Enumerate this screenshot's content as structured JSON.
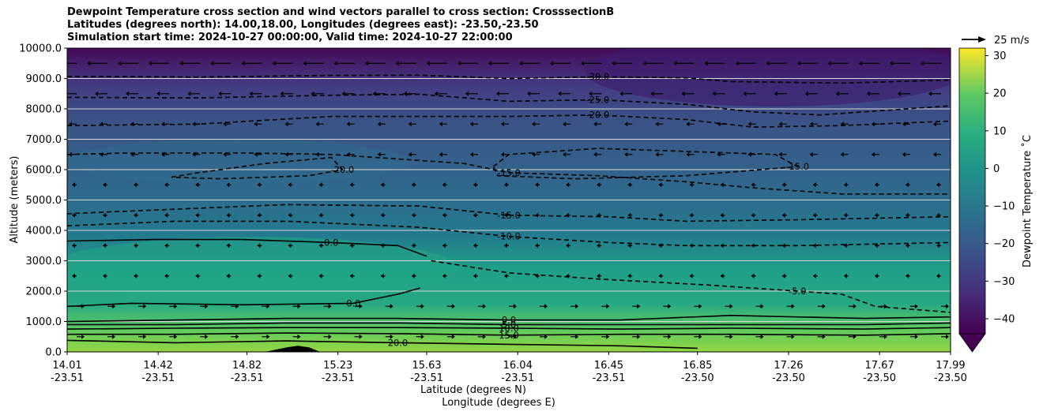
{
  "chart_data": {
    "type": "contour",
    "title_lines": [
      "Dewpoint Temperature cross section and wind vectors parallel to cross section: CrosssectionB",
      "Latitudes (degrees north): 14.00,18.00, Longitudes (degrees east): -23.50,-23.50",
      "Simulation start time: 2024-10-27 00:00:00, Valid time: 2024-10-27 22:00:00"
    ],
    "xlabel": "Latitude (degrees N)",
    "xlabel2": "Longitude (degrees E)",
    "ylabel": "Altitude (meters)",
    "x_range": [
      14.01,
      17.99
    ],
    "ylim": [
      0,
      10000
    ],
    "x_ticks": [
      {
        "lat": "14.01",
        "lon": "-23.51",
        "value": 14.01
      },
      {
        "lat": "14.42",
        "lon": "-23.51",
        "value": 14.42
      },
      {
        "lat": "14.82",
        "lon": "-23.51",
        "value": 14.82
      },
      {
        "lat": "15.23",
        "lon": "-23.51",
        "value": 15.23
      },
      {
        "lat": "15.63",
        "lon": "-23.51",
        "value": 15.63
      },
      {
        "lat": "16.04",
        "lon": "-23.51",
        "value": 16.04
      },
      {
        "lat": "16.45",
        "lon": "-23.51",
        "value": 16.45
      },
      {
        "lat": "16.85",
        "lon": "-23.50",
        "value": 16.85
      },
      {
        "lat": "17.26",
        "lon": "-23.50",
        "value": 17.26
      },
      {
        "lat": "17.67",
        "lon": "-23.50",
        "value": 17.67
      },
      {
        "lat": "17.99",
        "lon": "-23.50",
        "value": 17.99
      }
    ],
    "y_ticks": [
      {
        "label": "0.0",
        "value": 0
      },
      {
        "label": "1000.0",
        "value": 1000
      },
      {
        "label": "2000.0",
        "value": 2000
      },
      {
        "label": "3000.0",
        "value": 3000
      },
      {
        "label": "4000.0",
        "value": 4000
      },
      {
        "label": "5000.0",
        "value": 5000
      },
      {
        "label": "6000.0",
        "value": 6000
      },
      {
        "label": "7000.0",
        "value": 7000
      },
      {
        "label": "8000.0",
        "value": 8000
      },
      {
        "label": "9000.0",
        "value": 9000
      },
      {
        "label": "10000.0",
        "value": 10000
      }
    ],
    "grid": "horizontal",
    "colorbar": {
      "label": "Dewpoint Temperature ˚C",
      "colormap": "viridis",
      "range": [
        -44,
        32
      ],
      "ticks": [
        {
          "label": "30",
          "value": 30
        },
        {
          "label": "20",
          "value": 20
        },
        {
          "label": "10",
          "value": 10
        },
        {
          "label": "0",
          "value": 0
        },
        {
          "label": "−10",
          "value": -10
        },
        {
          "label": "−20",
          "value": -20
        },
        {
          "label": "−30",
          "value": -30
        },
        {
          "label": "−40",
          "value": -40
        }
      ],
      "extend": "min"
    },
    "wind_key": {
      "label": "25 m/s",
      "value": 25
    },
    "contour_lines": [
      {
        "style": "dashed",
        "label": "-30.0",
        "value": -30,
        "points": [
          [
            14.01,
            9070
          ],
          [
            14.6,
            9050
          ],
          [
            15.2,
            9100
          ],
          [
            15.6,
            9110
          ],
          [
            16.0,
            9000
          ],
          [
            16.4,
            9060
          ],
          [
            16.8,
            9020
          ],
          [
            17.0,
            8900
          ],
          [
            17.5,
            8850
          ],
          [
            17.99,
            8950
          ]
        ]
      },
      {
        "style": "dashed",
        "label": "-25.0",
        "value": -25,
        "points": [
          [
            14.01,
            8380
          ],
          [
            14.6,
            8360
          ],
          [
            15.2,
            8450
          ],
          [
            15.6,
            8480
          ],
          [
            16.0,
            8250
          ],
          [
            16.4,
            8300
          ],
          [
            16.8,
            8150
          ],
          [
            17.1,
            7900
          ],
          [
            17.4,
            7800
          ],
          [
            17.99,
            8100
          ]
        ]
      },
      {
        "style": "dashed",
        "label": "-20.0",
        "value": -20,
        "points": [
          [
            14.01,
            7450
          ],
          [
            14.6,
            7500
          ],
          [
            15.2,
            7750
          ],
          [
            15.6,
            7750
          ],
          [
            16.0,
            7750
          ],
          [
            16.4,
            7800
          ],
          [
            16.8,
            7650
          ],
          [
            17.1,
            7400
          ],
          [
            17.5,
            7450
          ],
          [
            17.99,
            7600
          ]
        ]
      },
      {
        "style": "dashed",
        "label": "-15.0",
        "value": -15,
        "points": [
          [
            14.01,
            6500
          ],
          [
            14.3,
            6550
          ],
          [
            14.8,
            6550
          ],
          [
            15.2,
            6500
          ],
          [
            15.6,
            6300
          ],
          [
            15.8,
            6200
          ],
          [
            16.0,
            5900
          ],
          [
            16.4,
            5800
          ],
          [
            16.8,
            5600
          ],
          [
            17.1,
            5400
          ],
          [
            17.5,
            5200
          ],
          [
            17.99,
            5200
          ]
        ]
      },
      {
        "style": "dashed",
        "label": "-20.0",
        "value": -20,
        "points": [
          [
            14.48,
            5750
          ],
          [
            14.6,
            5900
          ],
          [
            14.9,
            6200
          ],
          [
            15.2,
            6400
          ],
          [
            15.25,
            6000
          ],
          [
            15.1,
            5800
          ],
          [
            14.7,
            5700
          ],
          [
            14.48,
            5750
          ]
        ]
      },
      {
        "style": "dashed",
        "label": "-15.0",
        "value": -15,
        "points": [
          [
            15.93,
            6100
          ],
          [
            16.0,
            6500
          ],
          [
            16.4,
            6700
          ],
          [
            16.8,
            6600
          ],
          [
            17.2,
            6500
          ],
          [
            17.3,
            6100
          ],
          [
            16.8,
            5800
          ],
          [
            16.3,
            5700
          ],
          [
            15.95,
            5800
          ],
          [
            15.93,
            6100
          ]
        ]
      },
      {
        "style": "dashed",
        "label": "-15.0",
        "value": -15,
        "points": [
          [
            14.01,
            4550
          ],
          [
            14.5,
            4700
          ],
          [
            15.0,
            4850
          ],
          [
            15.6,
            4800
          ],
          [
            16.0,
            4500
          ],
          [
            16.45,
            4450
          ],
          [
            16.8,
            4300
          ],
          [
            17.3,
            4350
          ],
          [
            17.99,
            4450
          ]
        ]
      },
      {
        "style": "dashed",
        "label": "-10.0",
        "value": -10,
        "points": [
          [
            14.01,
            4150
          ],
          [
            14.5,
            4300
          ],
          [
            15.0,
            4300
          ],
          [
            15.6,
            4100
          ],
          [
            16.0,
            3800
          ],
          [
            16.45,
            3600
          ],
          [
            16.8,
            3500
          ],
          [
            17.3,
            3500
          ],
          [
            17.99,
            3600
          ]
        ]
      },
      {
        "style": "dashed",
        "label": "-5.0",
        "value": -5,
        "points": [
          [
            15.65,
            3000
          ],
          [
            16.0,
            2600
          ],
          [
            16.4,
            2400
          ],
          [
            16.9,
            2200
          ],
          [
            17.3,
            2000
          ],
          [
            17.5,
            1900
          ],
          [
            17.65,
            1500
          ],
          [
            17.99,
            1300
          ]
        ]
      },
      {
        "style": "solid",
        "label": "0.0",
        "value": 0,
        "points": [
          [
            14.01,
            3650
          ],
          [
            14.4,
            3700
          ],
          [
            14.8,
            3700
          ],
          [
            15.2,
            3600
          ],
          [
            15.5,
            3500
          ],
          [
            15.63,
            3150
          ]
        ]
      },
      {
        "style": "solid",
        "label": "0.0",
        "value": 0,
        "points": [
          [
            14.01,
            1500
          ],
          [
            14.3,
            1600
          ],
          [
            14.8,
            1550
          ],
          [
            15.3,
            1600
          ],
          [
            15.5,
            1900
          ],
          [
            15.6,
            2100
          ]
        ]
      },
      {
        "style": "solid",
        "label": "0.0",
        "value": 0,
        "points": [
          [
            14.01,
            1000
          ],
          [
            14.5,
            1050
          ],
          [
            15.0,
            1100
          ],
          [
            15.5,
            1100
          ],
          [
            16.0,
            1050
          ],
          [
            16.5,
            1050
          ],
          [
            17.0,
            1200
          ],
          [
            17.6,
            1100
          ],
          [
            17.99,
            1150
          ]
        ]
      },
      {
        "style": "solid",
        "label": "5.0",
        "value": 5,
        "points": [
          [
            14.01,
            900
          ],
          [
            14.5,
            900
          ],
          [
            15.0,
            950
          ],
          [
            15.5,
            950
          ],
          [
            16.0,
            900
          ],
          [
            16.5,
            900
          ],
          [
            17.0,
            900
          ],
          [
            17.6,
            900
          ],
          [
            17.99,
            950
          ]
        ]
      },
      {
        "style": "solid",
        "label": "10.0",
        "value": 10,
        "points": [
          [
            14.01,
            750
          ],
          [
            14.5,
            780
          ],
          [
            15.0,
            800
          ],
          [
            15.5,
            800
          ],
          [
            16.0,
            780
          ],
          [
            16.5,
            750
          ],
          [
            17.0,
            780
          ],
          [
            17.6,
            750
          ],
          [
            17.99,
            800
          ]
        ]
      },
      {
        "style": "solid",
        "label": "15.0",
        "value": 15,
        "points": [
          [
            14.01,
            580
          ],
          [
            14.5,
            580
          ],
          [
            15.0,
            620
          ],
          [
            15.5,
            600
          ],
          [
            16.0,
            550
          ],
          [
            16.5,
            580
          ],
          [
            17.0,
            580
          ],
          [
            17.6,
            550
          ],
          [
            17.99,
            600
          ]
        ]
      },
      {
        "style": "solid",
        "label": "20.0",
        "value": 20,
        "points": [
          [
            14.01,
            380
          ],
          [
            14.5,
            300
          ],
          [
            15.0,
            360
          ],
          [
            15.5,
            300
          ],
          [
            16.0,
            250
          ],
          [
            16.5,
            200
          ],
          [
            16.85,
            120
          ]
        ]
      }
    ],
    "terrain": {
      "points": [
        [
          14.9,
          0
        ],
        [
          15.0,
          150
        ],
        [
          15.05,
          200
        ],
        [
          15.1,
          150
        ],
        [
          15.15,
          0
        ]
      ]
    }
  }
}
